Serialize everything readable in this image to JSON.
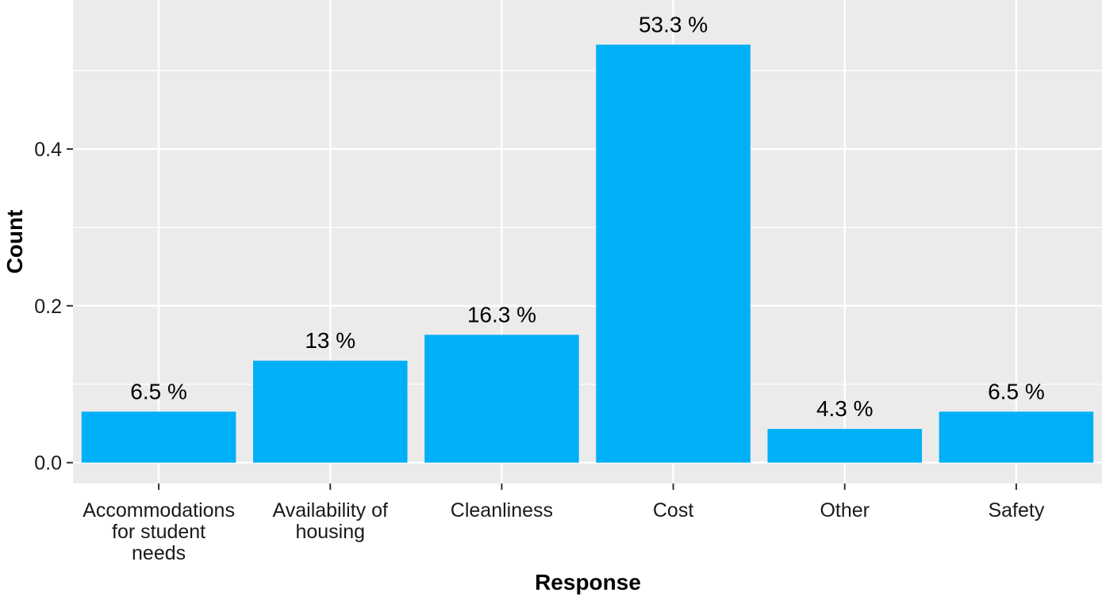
{
  "chart_data": {
    "type": "bar",
    "title": "",
    "xlabel": "Response",
    "ylabel": "Count",
    "categories": [
      "Accommodations for student needs",
      "Availability of housing",
      "Cleanliness",
      "Cost",
      "Other",
      "Safety"
    ],
    "category_lines": [
      [
        "Accommodations",
        "for student",
        "needs"
      ],
      [
        "Availability of",
        "housing"
      ],
      [
        "Cleanliness"
      ],
      [
        "Cost"
      ],
      [
        "Other"
      ],
      [
        "Safety"
      ]
    ],
    "values": [
      0.065,
      0.13,
      0.163,
      0.533,
      0.043,
      0.065
    ],
    "labels": [
      "6.5 %",
      "13 %",
      "16.3 %",
      "53.3 %",
      "4.3 %",
      "6.5 %"
    ],
    "ylim": [
      -0.0266,
      0.59
    ],
    "yticks": [
      0.0,
      0.2,
      0.4
    ],
    "ytick_labels": [
      "0.0",
      "0.2",
      "0.4"
    ],
    "grid": true,
    "legend": "none",
    "colors": {
      "bar": "#00B0F6",
      "panel": "#EBEBEB",
      "grid": "#FFFFFF",
      "axis": "#333333"
    }
  }
}
